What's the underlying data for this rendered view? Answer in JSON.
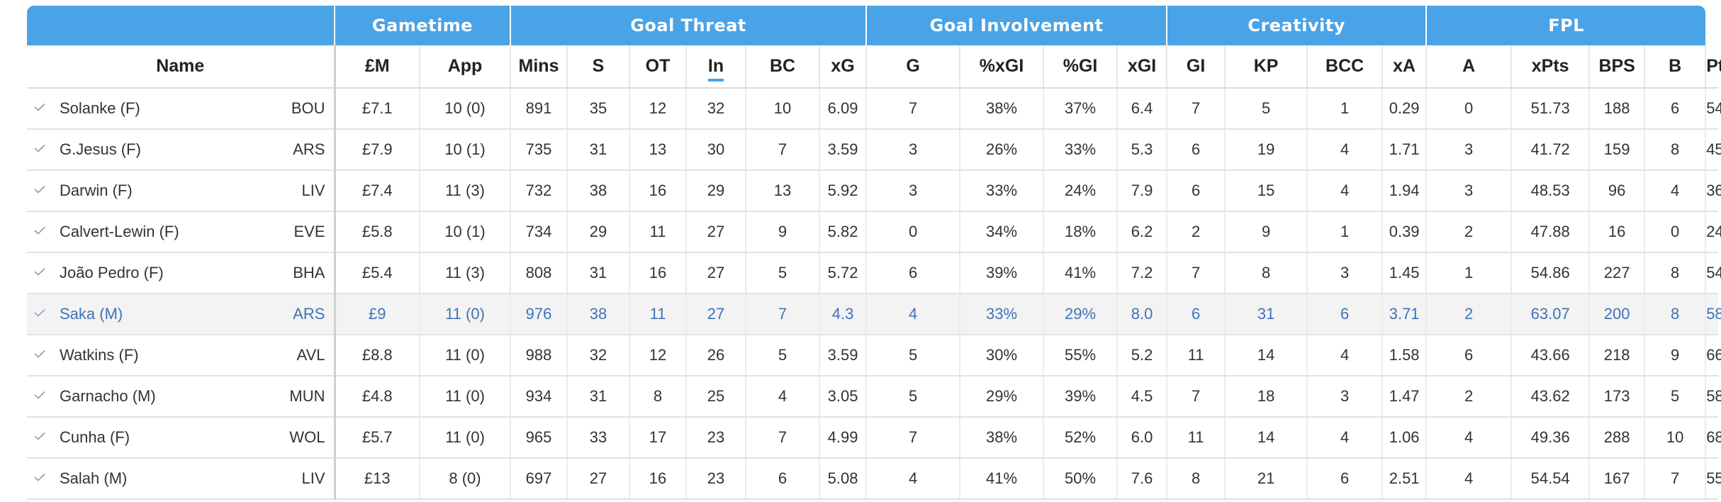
{
  "groups": [
    {
      "label": "",
      "span": 2
    },
    {
      "label": "Gametime",
      "span": 2
    },
    {
      "label": "Goal Threat",
      "span": 6
    },
    {
      "label": "Goal Involvement",
      "span": 4
    },
    {
      "label": "Creativity",
      "span": 4
    },
    {
      "label": "FPL",
      "span": 4
    }
  ],
  "columns": [
    "Name",
    "£M",
    "App",
    "Mins",
    "S",
    "OT",
    "In",
    "BC",
    "xG",
    "G",
    "%xGI",
    "%GI",
    "xGI",
    "GI",
    "KP",
    "BCC",
    "xA",
    "A",
    "xPts",
    "BPS",
    "B",
    "Pts"
  ],
  "sorted_column": "In",
  "check_icon": "check-icon",
  "colors": {
    "header_bg": "#4aa3e6",
    "highlight_row_text": "#3f73b8",
    "highlight_row_bg": "#f3f3f3"
  },
  "rows": [
    {
      "player": "Solanke (F)",
      "team": "BOU",
      "values": [
        "£7.1",
        "10 (0)",
        "891",
        "35",
        "12",
        "32",
        "10",
        "6.09",
        "7",
        "38%",
        "37%",
        "6.4",
        "7",
        "5",
        "1",
        "0.29",
        "0",
        "51.73",
        "188",
        "6",
        "54"
      ]
    },
    {
      "player": "G.Jesus (F)",
      "team": "ARS",
      "values": [
        "£7.9",
        "10 (1)",
        "735",
        "31",
        "13",
        "30",
        "7",
        "3.59",
        "3",
        "26%",
        "33%",
        "5.3",
        "6",
        "19",
        "4",
        "1.71",
        "3",
        "41.72",
        "159",
        "8",
        "45"
      ]
    },
    {
      "player": "Darwin (F)",
      "team": "LIV",
      "values": [
        "£7.4",
        "11 (3)",
        "732",
        "38",
        "16",
        "29",
        "13",
        "5.92",
        "3",
        "33%",
        "24%",
        "7.9",
        "6",
        "15",
        "4",
        "1.94",
        "3",
        "48.53",
        "96",
        "4",
        "36"
      ]
    },
    {
      "player": "Calvert-Lewin (F)",
      "team": "EVE",
      "values": [
        "£5.8",
        "10 (1)",
        "734",
        "29",
        "11",
        "27",
        "9",
        "5.82",
        "0",
        "34%",
        "18%",
        "6.2",
        "2",
        "9",
        "1",
        "0.39",
        "2",
        "47.88",
        "16",
        "0",
        "24"
      ]
    },
    {
      "player": "João Pedro (F)",
      "team": "BHA",
      "values": [
        "£5.4",
        "11 (3)",
        "808",
        "31",
        "16",
        "27",
        "5",
        "5.72",
        "6",
        "39%",
        "41%",
        "7.2",
        "7",
        "8",
        "3",
        "1.45",
        "1",
        "54.86",
        "227",
        "8",
        "54"
      ]
    },
    {
      "player": "Saka (M)",
      "team": "ARS",
      "highlight": true,
      "values": [
        "£9",
        "11 (0)",
        "976",
        "38",
        "11",
        "27",
        "7",
        "4.3",
        "4",
        "33%",
        "29%",
        "8.0",
        "6",
        "31",
        "6",
        "3.71",
        "2",
        "63.07",
        "200",
        "8",
        "58"
      ]
    },
    {
      "player": "Watkins (F)",
      "team": "AVL",
      "values": [
        "£8.8",
        "11 (0)",
        "988",
        "32",
        "12",
        "26",
        "5",
        "3.59",
        "5",
        "30%",
        "55%",
        "5.2",
        "11",
        "14",
        "4",
        "1.58",
        "6",
        "43.66",
        "218",
        "9",
        "66"
      ]
    },
    {
      "player": "Garnacho (M)",
      "team": "MUN",
      "values": [
        "£4.8",
        "11 (0)",
        "934",
        "31",
        "8",
        "25",
        "4",
        "3.05",
        "5",
        "29%",
        "39%",
        "4.5",
        "7",
        "18",
        "3",
        "1.47",
        "2",
        "43.62",
        "173",
        "5",
        "58"
      ]
    },
    {
      "player": "Cunha (F)",
      "team": "WOL",
      "values": [
        "£5.7",
        "11 (0)",
        "965",
        "33",
        "17",
        "23",
        "7",
        "4.99",
        "7",
        "38%",
        "52%",
        "6.0",
        "11",
        "14",
        "4",
        "1.06",
        "4",
        "49.36",
        "288",
        "10",
        "68"
      ]
    },
    {
      "player": "Salah (M)",
      "team": "LIV",
      "values": [
        "£13",
        "8 (0)",
        "697",
        "27",
        "16",
        "23",
        "6",
        "5.08",
        "4",
        "41%",
        "50%",
        "7.6",
        "8",
        "21",
        "6",
        "2.51",
        "4",
        "54.54",
        "167",
        "7",
        "55"
      ]
    }
  ]
}
